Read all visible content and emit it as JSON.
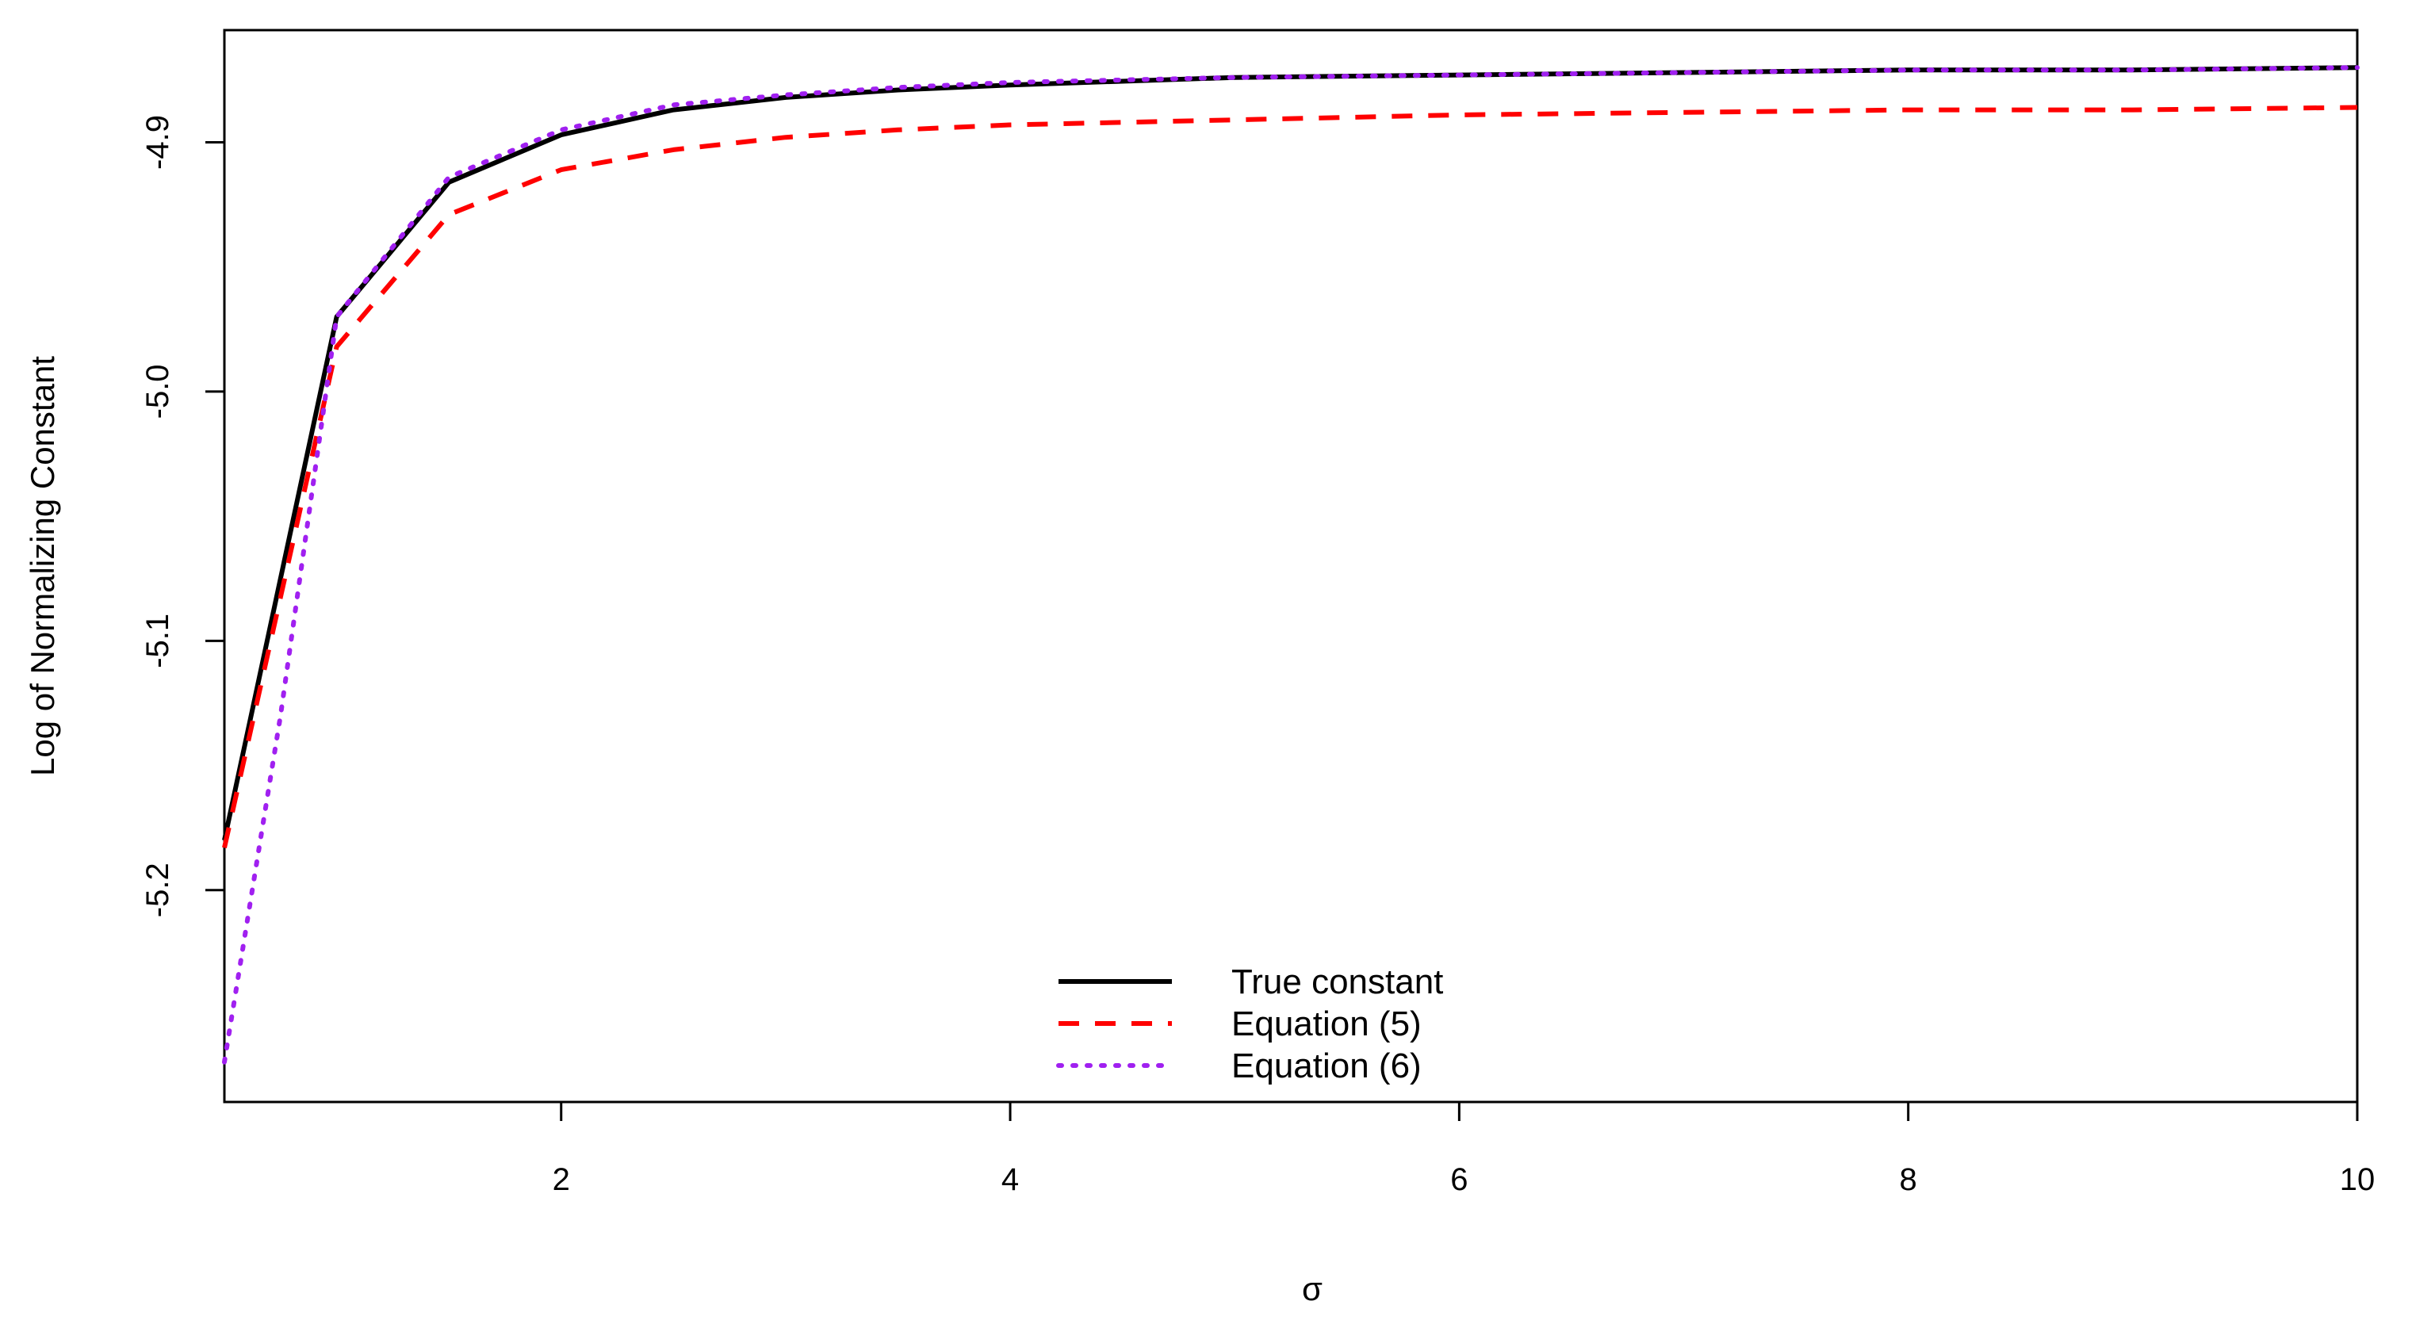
{
  "chart_data": {
    "type": "line",
    "title": "",
    "xlabel": "σ",
    "ylabel": "Log of Normalizing Constant",
    "xlim": [
      0.5,
      10
    ],
    "ylim": [
      -5.285,
      -4.855
    ],
    "x_ticks": [
      "2",
      "4",
      "6",
      "8",
      "10"
    ],
    "x_tick_values": [
      2,
      4,
      6,
      8,
      10
    ],
    "y_ticks": [
      "-4.9",
      "-5.0",
      "-5.1",
      "-5.2"
    ],
    "y_tick_values": [
      -4.9,
      -5.0,
      -5.1,
      -5.2
    ],
    "grid": false,
    "legend_position": "bottom-center",
    "series": [
      {
        "name": "True constant",
        "color": "#000000",
        "style": "solid",
        "x": [
          0.5,
          1.0,
          1.5,
          2.0,
          2.5,
          3.0,
          3.5,
          4.0,
          5.0,
          6.0,
          7.0,
          8.0,
          9.0,
          10.0
        ],
        "y": [
          -5.18,
          -4.97,
          -4.916,
          -4.897,
          -4.887,
          -4.882,
          -4.879,
          -4.877,
          -4.874,
          -4.873,
          -4.872,
          -4.871,
          -4.871,
          -4.87
        ]
      },
      {
        "name": "Equation (5)",
        "color": "#ff0000",
        "style": "dashed",
        "x": [
          0.5,
          1.0,
          1.5,
          2.0,
          2.5,
          3.0,
          3.5,
          4.0,
          5.0,
          6.0,
          7.0,
          8.0,
          9.0,
          10.0
        ],
        "y": [
          -5.183,
          -4.982,
          -4.929,
          -4.911,
          -4.903,
          -4.898,
          -4.895,
          -4.893,
          -4.891,
          -4.889,
          -4.888,
          -4.887,
          -4.887,
          -4.886
        ]
      },
      {
        "name": "Equation (6)",
        "color": "#a020f0",
        "style": "dotted",
        "x": [
          0.5,
          0.75,
          1.0,
          1.5,
          2.0,
          2.5,
          3.0,
          3.5,
          4.0,
          5.0,
          6.0,
          7.0,
          8.0,
          9.0,
          10.0
        ],
        "y": [
          -5.269,
          -5.13,
          -4.97,
          -4.914,
          -4.895,
          -4.885,
          -4.881,
          -4.878,
          -4.876,
          -4.874,
          -4.873,
          -4.872,
          -4.871,
          -4.871,
          -4.87
        ]
      }
    ]
  }
}
